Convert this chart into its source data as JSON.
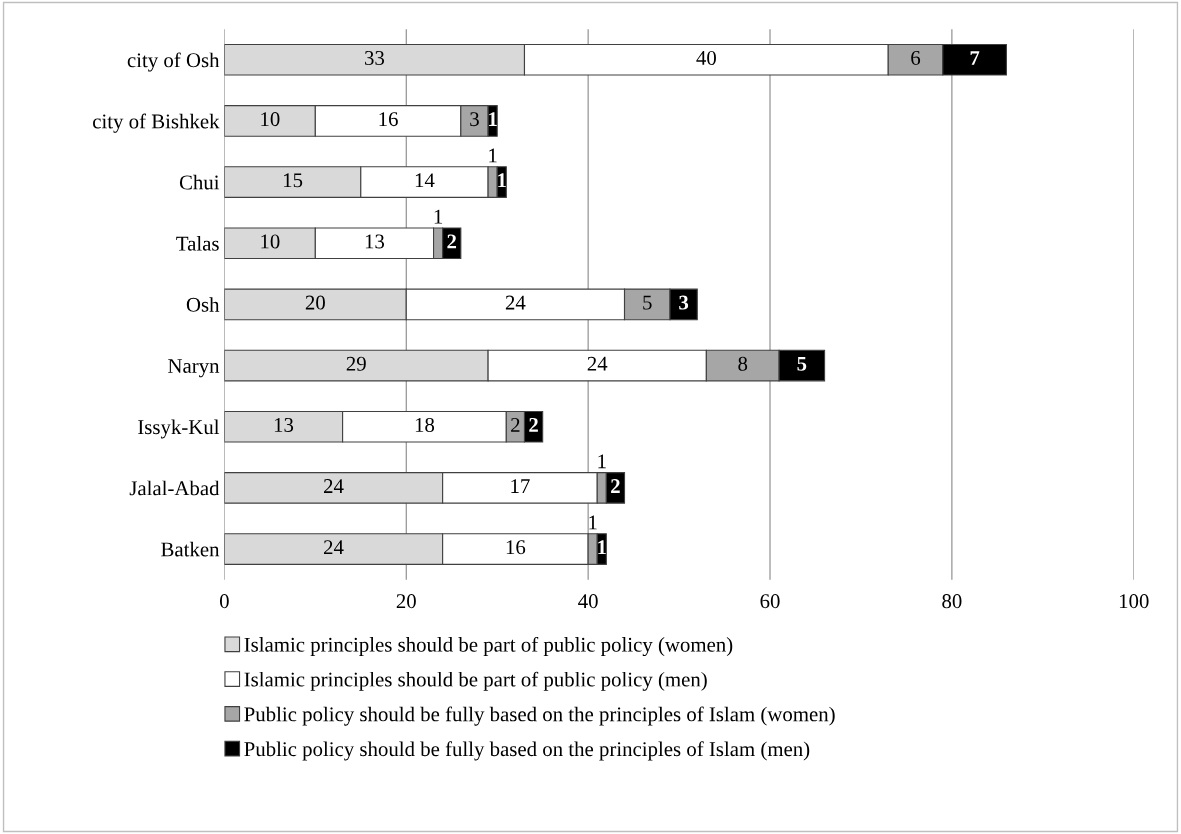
{
  "chart_data": {
    "type": "bar",
    "orientation": "horizontal",
    "stacked": true,
    "data_labels": true,
    "categories": [
      "city of Osh",
      "city of Bishkek",
      "Chui",
      "Talas",
      "Osh",
      "Naryn",
      "Issyk-Kul",
      "Jalal-Abad",
      "Batken"
    ],
    "series": [
      {
        "name": "Islamic principles should be part of public policy (women)",
        "color": "#d9d9d9",
        "values": [
          33,
          10,
          15,
          10,
          20,
          29,
          13,
          24,
          24
        ]
      },
      {
        "name": "Islamic principles should be part of public policy (men)",
        "color": "#ffffff",
        "values": [
          40,
          16,
          14,
          13,
          24,
          24,
          18,
          17,
          16
        ]
      },
      {
        "name": "Public policy should be fully based on the principles of Islam (women)",
        "color": "#a6a6a6",
        "values": [
          6,
          3,
          1,
          1,
          5,
          8,
          2,
          1,
          1
        ]
      },
      {
        "name": "Public policy should be fully based on the principles of Islam (men)",
        "color": "#000000",
        "values": [
          7,
          1,
          1,
          2,
          3,
          5,
          2,
          2,
          1
        ]
      }
    ],
    "xlim": [
      0,
      100
    ],
    "xticks": [
      0,
      20,
      40,
      60,
      80,
      100
    ],
    "grid": "x",
    "legend": "bottom"
  }
}
